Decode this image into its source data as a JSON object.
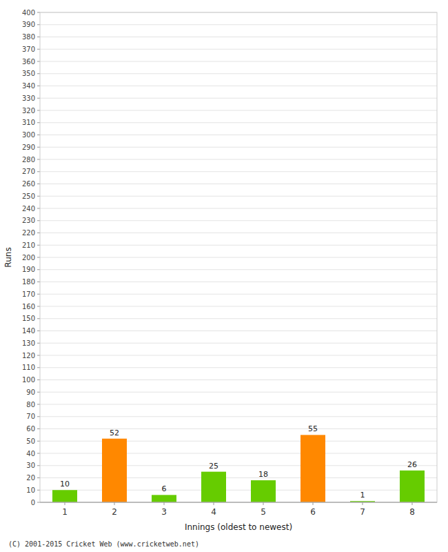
{
  "chart_data": {
    "type": "bar",
    "xlabel": "Innings (oldest to newest)",
    "ylabel": "Runs",
    "categories": [
      "1",
      "2",
      "3",
      "4",
      "5",
      "6",
      "7",
      "8"
    ],
    "values": [
      10,
      52,
      6,
      25,
      18,
      55,
      1,
      26
    ],
    "colors": [
      "#66cc00",
      "#ff8800",
      "#66cc00",
      "#66cc00",
      "#66cc00",
      "#ff8800",
      "#66cc00",
      "#66cc00"
    ],
    "ylim": [
      0,
      400
    ],
    "yticks": [
      0,
      10,
      20,
      30,
      40,
      50,
      60,
      70,
      80,
      90,
      100,
      110,
      120,
      130,
      140,
      150,
      160,
      170,
      180,
      190,
      200,
      210,
      220,
      230,
      240,
      250,
      260,
      270,
      280,
      290,
      300,
      310,
      320,
      330,
      340,
      350,
      360,
      370,
      380,
      390,
      400
    ],
    "grid": true,
    "data_labels": true,
    "annotations": [
      "(C) 2001-2015 Cricket Web (www.cricketweb.net)"
    ]
  }
}
